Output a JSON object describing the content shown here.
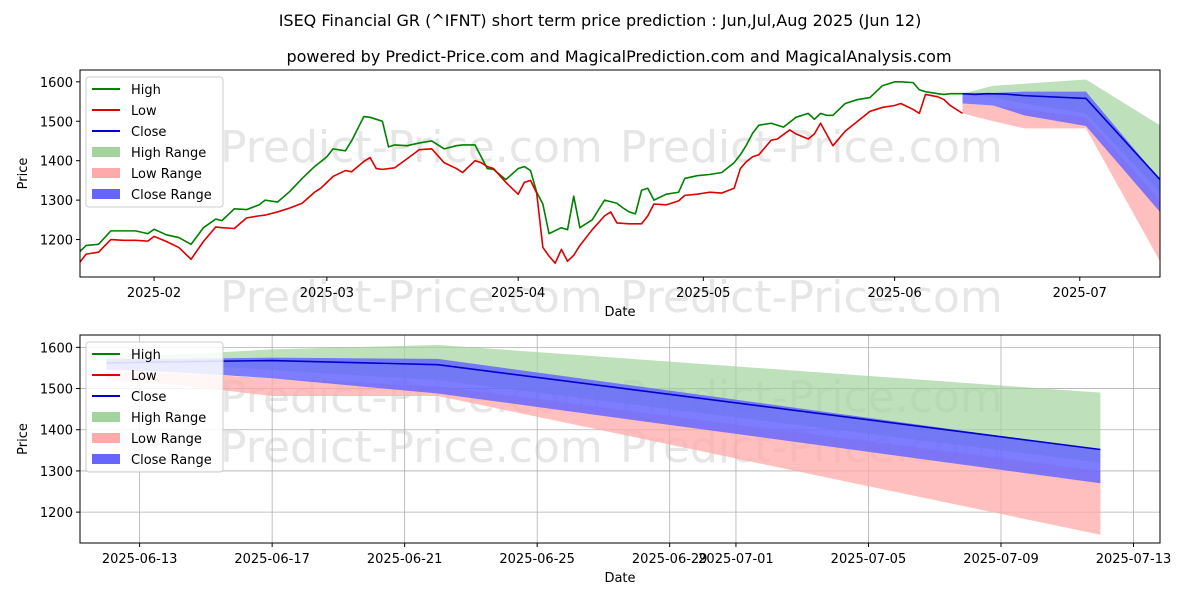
{
  "chart_data": [
    {
      "type": "line",
      "title": "ISEQ Financial GR (^IFNT) short term price prediction : Jun,Jul,Aug 2025 (Jun 12)",
      "subtitle": "powered by Predict-Price.com and MagicalPrediction.com and MagicalAnalysis.com",
      "xlabel": "Date",
      "ylabel": "Price",
      "watermark": "Predict-Price.com",
      "xlim": [
        0,
        175
      ],
      "ylim": [
        1105,
        1630
      ],
      "grid": false,
      "legend_position": "top-left",
      "x_tick_days": [
        12,
        40,
        71,
        101,
        132,
        162
      ],
      "x_tick_labels": [
        "2025-02",
        "2025-03",
        "2025-04",
        "2025-05",
        "2025-06",
        "2025-07"
      ],
      "y_ticks": [
        1200,
        1300,
        1400,
        1500,
        1600
      ],
      "x_note": "x = days since 2025-01-20",
      "legend": [
        "High",
        "Low",
        "Close",
        "High Range",
        "Low Range",
        "Close Range"
      ],
      "colors": {
        "high": "#008000",
        "low": "#dd0000",
        "close": "#0000cc",
        "high_range": "#a3d49e",
        "low_range": "#ffaaaa",
        "close_range": "#6666ff"
      },
      "series": [
        {
          "name": "High",
          "x": [
            0,
            1,
            3,
            5,
            7,
            9,
            11,
            12,
            14,
            16,
            18,
            20,
            22,
            23,
            25,
            27,
            29,
            30,
            32,
            34,
            36,
            38,
            40,
            41,
            43,
            44,
            46,
            47,
            49,
            50,
            51,
            53,
            55,
            57,
            59,
            61,
            62,
            64,
            65,
            66,
            67,
            69,
            71,
            72,
            73,
            74,
            75,
            76,
            78,
            79,
            80,
            81,
            83,
            85,
            87,
            88,
            89,
            90,
            91,
            92,
            93,
            95,
            97,
            98,
            100,
            102,
            104,
            106,
            107,
            108,
            109,
            110,
            112,
            114,
            116,
            118,
            119,
            120,
            121,
            122,
            124,
            126,
            128,
            129,
            130,
            132,
            133,
            135,
            136,
            137,
            139,
            140,
            141,
            143
          ],
          "values": [
            1170,
            1185,
            1188,
            1222,
            1222,
            1222,
            1215,
            1226,
            1212,
            1205,
            1188,
            1230,
            1252,
            1248,
            1278,
            1276,
            1288,
            1300,
            1295,
            1322,
            1355,
            1385,
            1410,
            1430,
            1425,
            1450,
            1512,
            1510,
            1500,
            1435,
            1440,
            1438,
            1445,
            1450,
            1430,
            1438,
            1440,
            1440,
            1410,
            1380,
            1378,
            1352,
            1380,
            1385,
            1375,
            1320,
            1290,
            1215,
            1230,
            1225,
            1310,
            1230,
            1250,
            1300,
            1292,
            1280,
            1270,
            1265,
            1325,
            1330,
            1300,
            1315,
            1320,
            1355,
            1362,
            1365,
            1370,
            1395,
            1415,
            1440,
            1470,
            1490,
            1495,
            1485,
            1510,
            1520,
            1505,
            1520,
            1515,
            1515,
            1545,
            1555,
            1560,
            1575,
            1590,
            1600,
            1600,
            1598,
            1580,
            1575,
            1570,
            1568,
            1570,
            1570
          ]
        },
        {
          "name": "Low",
          "x": [
            0,
            1,
            3,
            5,
            7,
            9,
            11,
            12,
            14,
            16,
            18,
            20,
            22,
            23,
            25,
            27,
            29,
            30,
            32,
            34,
            36,
            38,
            39,
            40,
            41,
            43,
            44,
            46,
            47,
            48,
            49,
            51,
            53,
            55,
            57,
            59,
            61,
            62,
            64,
            65,
            66,
            67,
            69,
            70,
            71,
            72,
            73,
            74,
            75,
            76,
            77,
            78,
            79,
            80,
            81,
            83,
            85,
            86,
            87,
            89,
            90,
            91,
            92,
            93,
            95,
            97,
            98,
            100,
            102,
            104,
            106,
            107,
            108,
            109,
            110,
            112,
            113,
            115,
            116,
            118,
            119,
            120,
            122,
            124,
            126,
            128,
            129,
            130,
            132,
            133,
            135,
            136,
            137,
            139,
            140,
            141,
            143
          ],
          "values": [
            1143,
            1163,
            1168,
            1200,
            1198,
            1198,
            1196,
            1208,
            1195,
            1180,
            1150,
            1195,
            1232,
            1230,
            1228,
            1255,
            1260,
            1262,
            1270,
            1280,
            1292,
            1320,
            1330,
            1345,
            1360,
            1375,
            1372,
            1398,
            1408,
            1380,
            1378,
            1382,
            1405,
            1428,
            1430,
            1395,
            1380,
            1370,
            1400,
            1395,
            1385,
            1380,
            1345,
            1330,
            1315,
            1345,
            1350,
            1318,
            1180,
            1158,
            1140,
            1175,
            1145,
            1160,
            1185,
            1225,
            1260,
            1270,
            1242,
            1240,
            1240,
            1240,
            1260,
            1290,
            1288,
            1298,
            1312,
            1315,
            1320,
            1318,
            1330,
            1380,
            1398,
            1410,
            1415,
            1452,
            1455,
            1478,
            1468,
            1455,
            1468,
            1495,
            1438,
            1475,
            1500,
            1525,
            1530,
            1535,
            1540,
            1545,
            1530,
            1520,
            1568,
            1562,
            1555,
            1540,
            1520
          ]
        },
        {
          "name": "Close",
          "x": [
            143,
            145,
            147,
            150,
            153,
            163,
            175
          ],
          "values": [
            1570,
            1568,
            1570,
            1569,
            1565,
            1558,
            1352
          ]
        }
      ],
      "ranges": [
        {
          "name": "High Range",
          "x": [
            143,
            148,
            153,
            163,
            175
          ],
          "upper": [
            1570,
            1590,
            1595,
            1606,
            1490
          ],
          "lower": [
            1570,
            1560,
            1545,
            1520,
            1320
          ]
        },
        {
          "name": "Low Range",
          "x": [
            143,
            148,
            153,
            163,
            175
          ],
          "upper": [
            1545,
            1540,
            1530,
            1510,
            1300
          ],
          "lower": [
            1520,
            1500,
            1482,
            1482,
            1145
          ]
        },
        {
          "name": "Close Range",
          "x": [
            143,
            148,
            153,
            163,
            175
          ],
          "upper": [
            1572,
            1572,
            1575,
            1575,
            1352
          ],
          "lower": [
            1545,
            1540,
            1515,
            1488,
            1270
          ]
        }
      ]
    },
    {
      "type": "line",
      "title": "",
      "xlabel": "Date",
      "ylabel": "Price",
      "watermark": "Predict-Price.com",
      "x_note": "x = days since 2025-06-11",
      "xlim": [
        0.2,
        32.8
      ],
      "ylim": [
        1125,
        1630
      ],
      "grid": true,
      "legend_position": "top-left",
      "x_tick_days": [
        2,
        6,
        10,
        14,
        18,
        20,
        24,
        28,
        32
      ],
      "x_tick_labels": [
        "2025-06-13",
        "2025-06-17",
        "2025-06-21",
        "2025-06-25",
        "2025-06-29",
        "2025-07-01",
        "2025-07-05",
        "2025-07-09",
        "2025-07-13"
      ],
      "y_ticks": [
        1200,
        1300,
        1400,
        1500,
        1600
      ],
      "legend": [
        "High",
        "Low",
        "Close",
        "High Range",
        "Low Range",
        "Close Range"
      ],
      "colors": {
        "high": "#008000",
        "low": "#dd0000",
        "close": "#0000cc",
        "high_range": "#a3d49e",
        "low_range": "#ffaaaa",
        "close_range": "#6666ff"
      },
      "series": [
        {
          "name": "Close",
          "x": [
            1,
            3,
            6,
            11,
            31
          ],
          "values": [
            1562,
            1565,
            1568,
            1558,
            1352
          ]
        }
      ],
      "ranges": [
        {
          "name": "High Range",
          "x": [
            1,
            3,
            6,
            11,
            31
          ],
          "upper": [
            1578,
            1582,
            1595,
            1606,
            1490
          ],
          "lower": [
            1560,
            1560,
            1545,
            1520,
            1320
          ]
        },
        {
          "name": "Low Range",
          "x": [
            1,
            3,
            6,
            11,
            31
          ],
          "upper": [
            1540,
            1538,
            1525,
            1505,
            1300
          ],
          "lower": [
            1520,
            1510,
            1482,
            1482,
            1145
          ]
        },
        {
          "name": "Close Range",
          "x": [
            1,
            3,
            6,
            11,
            31
          ],
          "upper": [
            1572,
            1572,
            1575,
            1572,
            1352
          ],
          "lower": [
            1545,
            1540,
            1525,
            1488,
            1270
          ]
        }
      ]
    }
  ]
}
